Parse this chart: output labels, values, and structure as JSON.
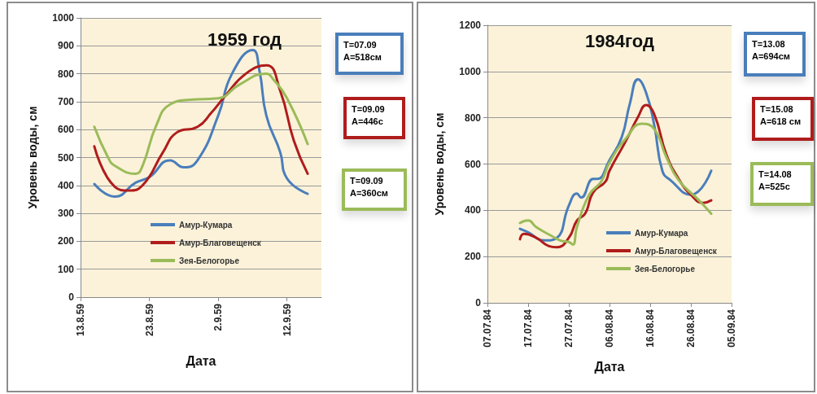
{
  "chart_data": [
    {
      "type": "line",
      "title": "1959 год",
      "xlabel": "Дата",
      "ylabel": "Уровень воды, см",
      "xlim": [
        "1959-08-13",
        "1959-09-17"
      ],
      "xticks": [
        {
          "value": "1959-08-13",
          "label": "13.8.59"
        },
        {
          "value": "1959-08-23",
          "label": "23.8.59"
        },
        {
          "value": "1959-09-02",
          "label": "2.9.59"
        },
        {
          "value": "1959-09-12",
          "label": "12.9.59"
        }
      ],
      "ylim": [
        0,
        1000
      ],
      "yticks": [
        0,
        100,
        200,
        300,
        400,
        500,
        600,
        700,
        800,
        900,
        1000
      ],
      "grid": "y",
      "legend": "bottom",
      "marker": "none",
      "line_style": "solid",
      "annotations": [
        "T=07.09\nA=518см",
        "T=09.09\nA=446с",
        "T=09.09\nA=360см"
      ],
      "series": [
        {
          "name": "Амур-Кумара",
          "color": "#4a7ebb",
          "x": [
            "1959-08-15",
            "1959-08-18",
            "1959-08-21",
            "1959-08-23",
            "1959-08-26",
            "1959-08-28",
            "1959-08-30",
            "1959-09-02",
            "1959-09-04",
            "1959-09-07",
            "1959-09-08",
            "1959-09-09",
            "1959-09-11",
            "1959-09-12",
            "1959-09-15"
          ],
          "values": [
            405,
            360,
            410,
            430,
            490,
            465,
            490,
            650,
            800,
            885,
            810,
            650,
            520,
            425,
            370
          ]
        },
        {
          "name": "Амур-Благовещенск",
          "color": "#b01c1c",
          "x": [
            "1959-08-15",
            "1959-08-18",
            "1959-08-20",
            "1959-08-22",
            "1959-08-25",
            "1959-08-27",
            "1959-08-30",
            "1959-09-01",
            "1959-09-03",
            "1959-09-06",
            "1959-09-09",
            "1959-09-11",
            "1959-09-13",
            "1959-09-15"
          ],
          "values": [
            540,
            395,
            382,
            400,
            520,
            590,
            610,
            660,
            720,
            800,
            830,
            740,
            560,
            442
          ]
        },
        {
          "name": "Зея-Белогорье",
          "color": "#9bbb59",
          "x": [
            "1959-08-15",
            "1959-08-17",
            "1959-08-18",
            "1959-08-21",
            "1959-08-22",
            "1959-08-24",
            "1959-08-26",
            "1959-08-29",
            "1959-09-02",
            "1959-09-05",
            "1959-09-09",
            "1959-09-10",
            "1959-09-12",
            "1959-09-15"
          ],
          "values": [
            610,
            500,
            470,
            442,
            470,
            615,
            690,
            707,
            712,
            760,
            800,
            780,
            712,
            548
          ]
        }
      ]
    },
    {
      "type": "line",
      "title": "1984год",
      "xlabel": "Дата",
      "ylabel": "Уровень воды, см",
      "xlim": [
        "1984-07-07",
        "1984-09-05"
      ],
      "xticks": [
        {
          "value": "1984-07-07",
          "label": "07.07.84"
        },
        {
          "value": "1984-07-17",
          "label": "17.07.84"
        },
        {
          "value": "1984-07-27",
          "label": "27.07.84"
        },
        {
          "value": "1984-08-06",
          "label": "06.08.84"
        },
        {
          "value": "1984-08-16",
          "label": "16.08.84"
        },
        {
          "value": "1984-08-26",
          "label": "26.08.84"
        },
        {
          "value": "1984-09-05",
          "label": "05.09.84"
        }
      ],
      "ylim": [
        0,
        1200
      ],
      "yticks": [
        0,
        200,
        400,
        600,
        800,
        1000,
        1200
      ],
      "grid": "y",
      "legend": "bottom",
      "marker": "none",
      "line_style": "solid",
      "annotations": [
        "T=13.08\nA=694см",
        "T=15.08\nA=618 см",
        "T=14.08\nA=525с"
      ],
      "series": [
        {
          "name": "Амур-Кумара",
          "color": "#4a7ebb",
          "x": [
            "1984-07-15",
            "1984-07-17",
            "1984-07-21",
            "1984-07-24",
            "1984-07-27",
            "1984-07-29",
            "1984-07-30",
            "1984-08-02",
            "1984-08-03",
            "1984-08-06",
            "1984-08-09",
            "1984-08-11",
            "1984-08-13",
            "1984-08-15",
            "1984-08-17",
            "1984-08-19",
            "1984-08-21",
            "1984-08-26",
            "1984-08-31"
          ],
          "values": [
            320,
            305,
            270,
            280,
            420,
            472,
            455,
            536,
            536,
            617,
            716,
            861,
            966,
            908,
            768,
            570,
            530,
            467,
            571
          ]
        },
        {
          "name": "Амур-Благовещенск",
          "color": "#b01c1c",
          "x": [
            "1984-07-15",
            "1984-07-16",
            "1984-07-19",
            "1984-07-22",
            "1984-07-24",
            "1984-07-27",
            "1984-07-29",
            "1984-07-31",
            "1984-08-02",
            "1984-08-05",
            "1984-08-06",
            "1984-08-10",
            "1984-08-13",
            "1984-08-15",
            "1984-08-17",
            "1984-08-20",
            "1984-08-23",
            "1984-08-26",
            "1984-08-29",
            "1984-08-31"
          ],
          "values": [
            275,
            298,
            281,
            246,
            240,
            281,
            356,
            385,
            478,
            524,
            571,
            699,
            803,
            855,
            815,
            640,
            536,
            467,
            432,
            443
          ]
        },
        {
          "name": "Зея-Белогорье",
          "color": "#9bbb59",
          "x": [
            "1984-07-15",
            "1984-07-17",
            "1984-07-19",
            "1984-07-23",
            "1984-07-25",
            "1984-07-27",
            "1984-07-28",
            "1984-07-29",
            "1984-08-01",
            "1984-08-04",
            "1984-08-06",
            "1984-08-10",
            "1984-08-14",
            "1984-08-17",
            "1984-08-20",
            "1984-08-23",
            "1984-08-28",
            "1984-08-31"
          ],
          "values": [
            345,
            356,
            327,
            287,
            269,
            263,
            252,
            327,
            467,
            525,
            606,
            710,
            774,
            751,
            629,
            530,
            443,
            385
          ]
        }
      ]
    }
  ]
}
